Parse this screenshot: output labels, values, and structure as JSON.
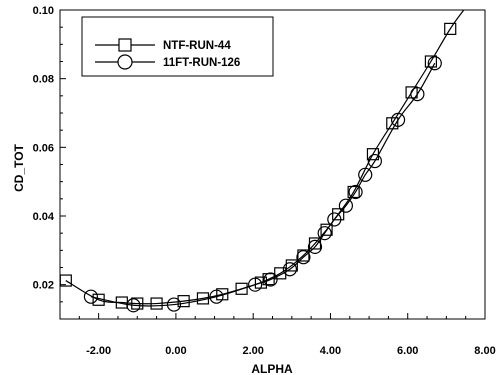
{
  "chart_data": {
    "type": "line",
    "xlabel": "ALPHA",
    "ylabel": "CD_TOT",
    "xlim": [
      -3,
      8
    ],
    "ylim": [
      0.01,
      0.1
    ],
    "xticks": [
      -2,
      0,
      2,
      4,
      6,
      8
    ],
    "xtick_labels": [
      "-2.00",
      "0.00",
      "2.00",
      "4.00",
      "6.00",
      "8.00"
    ],
    "yticks": [
      0.02,
      0.04,
      0.06,
      0.08,
      0.1
    ],
    "ytick_labels": [
      "0.02",
      "0.04",
      "0.06",
      "0.08",
      "0.10"
    ],
    "grid": false,
    "legend_position": "top-left",
    "series": [
      {
        "name": "NTF-RUN-44",
        "marker": "square",
        "color": "#000000",
        "x": [
          -2.85,
          -2.0,
          -1.4,
          -1.0,
          -0.5,
          0.2,
          0.7,
          1.2,
          1.7,
          2.2,
          2.4,
          2.7,
          3.0,
          3.3,
          3.6,
          3.9,
          4.2,
          4.6,
          5.1,
          5.6,
          6.1,
          6.6,
          7.1
        ],
        "y": [
          0.0212,
          0.0156,
          0.0148,
          0.0145,
          0.0145,
          0.0152,
          0.016,
          0.0172,
          0.0188,
          0.0206,
          0.0216,
          0.0233,
          0.0256,
          0.0285,
          0.032,
          0.036,
          0.0405,
          0.047,
          0.058,
          0.067,
          0.076,
          0.085,
          0.0945
        ]
      },
      {
        "name": "11FT-RUN-126",
        "marker": "circle",
        "color": "#000000",
        "x": [
          -2.2,
          -1.1,
          -0.05,
          1.05,
          2.05,
          2.45,
          2.95,
          3.3,
          3.6,
          3.85,
          4.1,
          4.4,
          4.65,
          4.9,
          5.15,
          5.75,
          6.25,
          6.7
        ],
        "y": [
          0.0165,
          0.014,
          0.0142,
          0.0165,
          0.02,
          0.0215,
          0.0245,
          0.028,
          0.031,
          0.035,
          0.039,
          0.043,
          0.047,
          0.052,
          0.056,
          0.068,
          0.0755,
          0.0845
        ]
      }
    ]
  }
}
